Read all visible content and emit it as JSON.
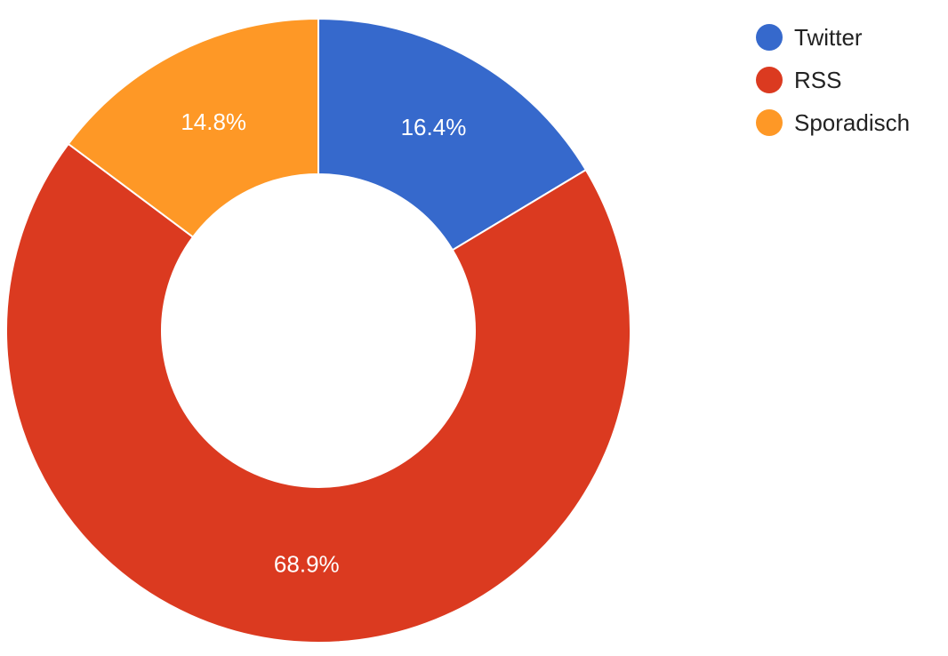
{
  "chart_data": {
    "type": "pie",
    "donut": true,
    "legend_position": "top-right",
    "start_angle_deg": 0,
    "direction": "clockwise",
    "slices": [
      {
        "name": "Twitter",
        "value": 16.4,
        "label": "16.4%",
        "color": "#3669cc"
      },
      {
        "name": "RSS",
        "value": 68.9,
        "label": "68.9%",
        "color": "#db3a20"
      },
      {
        "name": "Sporadisch",
        "value": 14.8,
        "label": "14.8%",
        "color": "#fe9826"
      }
    ]
  }
}
